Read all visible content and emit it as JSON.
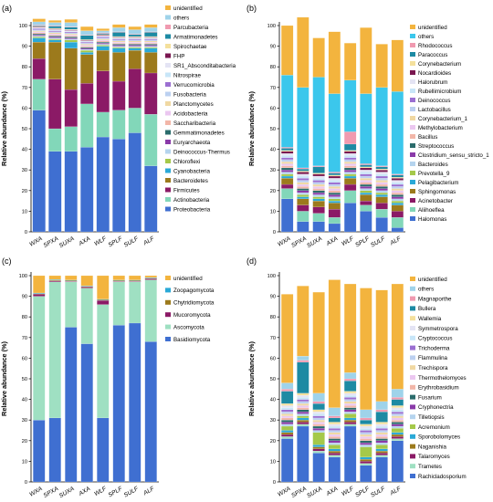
{
  "chart_data": [
    {
      "type": "bar",
      "panel_label": "(a)",
      "ylabel": "Relative abundance (%)",
      "ylim": [
        0,
        100
      ],
      "yticks": [
        "0",
        "10",
        "20",
        "30",
        "40",
        "50",
        "60",
        "70",
        "80",
        "90",
        "100"
      ],
      "categories": [
        "WXA",
        "SPXA",
        "SUXA",
        "AXA",
        "WLF",
        "SPLF",
        "SULF",
        "ALF"
      ],
      "series": [
        {
          "name": "Proteobacteria",
          "color": "#3f6fd1",
          "values": [
            59,
            39,
            39,
            41,
            46,
            45,
            48,
            32
          ]
        },
        {
          "name": "Actinobacteria",
          "color": "#82d7b9",
          "values": [
            15,
            11,
            12,
            21,
            12,
            14,
            12,
            25
          ]
        },
        {
          "name": "Firmicutes",
          "color": "#8b1a66",
          "values": [
            10,
            24,
            18,
            10,
            20,
            14,
            19,
            20
          ]
        },
        {
          "name": "Bacteroidetes",
          "color": "#9c7a1c",
          "values": [
            8,
            18,
            20,
            14,
            10,
            14,
            9,
            10
          ]
        },
        {
          "name": "Cyanobacteria",
          "color": "#2aa9d7",
          "values": [
            2,
            1,
            3,
            1,
            2,
            2,
            1,
            2
          ]
        },
        {
          "name": "Chloroflexi",
          "color": "#a5c94a",
          "values": [
            0.5,
            0.5,
            1,
            1,
            0.5,
            0.5,
            0.5,
            0.5
          ]
        },
        {
          "name": "Deinococcus-Thermus",
          "color": "#b5d4ee",
          "values": [
            0.5,
            0.5,
            0.5,
            0.5,
            0.5,
            0.5,
            0.5,
            0.5
          ]
        },
        {
          "name": "Euryarchaeota",
          "color": "#8a3aa9",
          "values": [
            0.5,
            0.5,
            0.5,
            0.5,
            0.5,
            0.5,
            0.5,
            0.5
          ]
        },
        {
          "name": "Gemmatimonadetes",
          "color": "#2b6c6c",
          "values": [
            0.5,
            0.5,
            0.5,
            0.5,
            0.5,
            0.5,
            0.5,
            0.5
          ]
        },
        {
          "name": "Saccharibacteria",
          "color": "#f2b6a8",
          "values": [
            0.5,
            0.5,
            0.5,
            0.5,
            0.5,
            0.5,
            0.5,
            0.5
          ]
        },
        {
          "name": "Acidobacteria",
          "color": "#ebc7f0",
          "values": [
            0.5,
            0.5,
            0.5,
            0.5,
            0.5,
            0.5,
            0.5,
            0.5
          ]
        },
        {
          "name": "Planctomycetes",
          "color": "#f0d8a2",
          "values": [
            0.5,
            0.5,
            0.5,
            0.5,
            0.5,
            0.5,
            0.5,
            0.5
          ]
        },
        {
          "name": "Fusobacteria",
          "color": "#bcd0f0",
          "values": [
            0.5,
            0.5,
            0.5,
            0.5,
            0.5,
            0.5,
            0.5,
            0.5
          ]
        },
        {
          "name": "Verrucomicrobia",
          "color": "#9b6fd1",
          "values": [
            0.5,
            0.5,
            0.5,
            0.5,
            0.5,
            0.5,
            0.5,
            0.5
          ]
        },
        {
          "name": "Nitrospirae",
          "color": "#c8e6f8",
          "values": [
            0.3,
            0.3,
            0.3,
            0.3,
            0.3,
            0.3,
            0.3,
            0.3
          ]
        },
        {
          "name": "SR1_Absconditabacteria",
          "color": "#e4e4f4",
          "values": [
            0.3,
            0.3,
            0.3,
            0.3,
            0.3,
            0.3,
            0.3,
            0.3
          ]
        },
        {
          "name": "FHP",
          "color": "#7a1750",
          "values": [
            0.3,
            0.3,
            0.3,
            0.3,
            0.3,
            0.3,
            0.3,
            0.3
          ]
        },
        {
          "name": "Spirochaetae",
          "color": "#f4e09c",
          "values": [
            0.3,
            0.3,
            0.3,
            0.3,
            0.3,
            0.3,
            0.3,
            0.3
          ]
        },
        {
          "name": "Armatimonadetes",
          "color": "#1d8aa3",
          "values": [
            0.3,
            1,
            1,
            2,
            0.5,
            2,
            1,
            2
          ]
        },
        {
          "name": "Parcubacteria",
          "color": "#f09ab0",
          "values": [
            0.3,
            0.3,
            0.3,
            0.3,
            0.3,
            0.3,
            0.3,
            0.3
          ]
        },
        {
          "name": "others",
          "color": "#9fd3ea",
          "values": [
            1.5,
            1.5,
            2,
            2,
            1,
            2,
            2,
            2
          ]
        },
        {
          "name": "unidentified",
          "color": "#f3b43e",
          "values": [
            1.5,
            1,
            1.5,
            2,
            1,
            1.5,
            1.5,
            1.5
          ]
        }
      ]
    },
    {
      "type": "bar",
      "panel_label": "(b)",
      "ylabel": "Relative abundance (%)",
      "ylim": [
        0,
        100
      ],
      "yticks": [
        "0",
        "10",
        "20",
        "30",
        "40",
        "50",
        "60",
        "70",
        "80",
        "90",
        "100"
      ],
      "categories": [
        "WXA",
        "SPXA",
        "SUXA",
        "AXA",
        "WLF",
        "SPLF",
        "SULF",
        "ALF"
      ],
      "series": [
        {
          "name": "Halomonas",
          "color": "#3f6fd1",
          "values": [
            16,
            5,
            5,
            4,
            14,
            10,
            7,
            2
          ]
        },
        {
          "name": "Aliihoeflea",
          "color": "#82d7b9",
          "values": [
            5,
            5,
            4,
            3,
            6,
            3,
            4,
            5
          ]
        },
        {
          "name": "Acinetobacter",
          "color": "#8b1a66",
          "values": [
            2,
            3,
            3,
            4,
            3,
            2,
            3,
            3
          ]
        },
        {
          "name": "Sphingomonas",
          "color": "#9c7a1c",
          "values": [
            3,
            3,
            3,
            3,
            3,
            3,
            3,
            3
          ]
        },
        {
          "name": "Pelagibacterium",
          "color": "#2aa9d7",
          "values": [
            1,
            1,
            1,
            1,
            1,
            1,
            1,
            1
          ]
        },
        {
          "name": "Prevotella_9",
          "color": "#a5c94a",
          "values": [
            1,
            1,
            1,
            1,
            1,
            1,
            1,
            1
          ]
        },
        {
          "name": "Bacteroides",
          "color": "#b5d4ee",
          "values": [
            1,
            1,
            1,
            1,
            1,
            1,
            1,
            1
          ]
        },
        {
          "name": "Clostridium_sensu_stricto_1",
          "color": "#8a3aa9",
          "values": [
            1,
            1,
            1,
            1,
            1,
            1,
            1,
            1
          ]
        },
        {
          "name": "Streptococcus",
          "color": "#2b6c6c",
          "values": [
            1,
            1,
            1,
            1,
            1,
            1,
            1,
            1
          ]
        },
        {
          "name": "Bacillus",
          "color": "#f2b6a8",
          "values": [
            1,
            1,
            1,
            1,
            1,
            1,
            1,
            1
          ]
        },
        {
          "name": "Methylobacterium",
          "color": "#ebc7f0",
          "values": [
            1,
            1,
            1,
            1,
            1,
            1,
            1,
            1
          ]
        },
        {
          "name": "Corynebacterium_1",
          "color": "#f0d8a2",
          "values": [
            1,
            1,
            1,
            1,
            1,
            1,
            1,
            1
          ]
        },
        {
          "name": "Lactobacillus",
          "color": "#bcd0f0",
          "values": [
            1,
            1,
            1,
            1,
            1,
            1,
            1,
            1
          ]
        },
        {
          "name": "Deinococcus",
          "color": "#9b6fd1",
          "values": [
            1,
            1,
            1,
            1,
            1,
            1,
            1,
            1
          ]
        },
        {
          "name": "Rubellimicrobium",
          "color": "#c8e6f8",
          "values": [
            1,
            1,
            1,
            1,
            1,
            1,
            1,
            1
          ]
        },
        {
          "name": "Halorubrum",
          "color": "#e4e4f4",
          "values": [
            1,
            1,
            1,
            1,
            1,
            1,
            1,
            1
          ]
        },
        {
          "name": "Nocardioides",
          "color": "#7a1750",
          "values": [
            1,
            1,
            1,
            1,
            1,
            1,
            1,
            1
          ]
        },
        {
          "name": "Corynebacterium",
          "color": "#f4e09c",
          "values": [
            0.5,
            0.5,
            0.5,
            0.5,
            0.5,
            0.5,
            0.5,
            0.5
          ]
        },
        {
          "name": "Paracoccus",
          "color": "#1d8aa3",
          "values": [
            1,
            1,
            3,
            1,
            3,
            1,
            1,
            1
          ]
        },
        {
          "name": "Rhodococcus",
          "color": "#f09ab0",
          "values": [
            0.5,
            0.5,
            0.5,
            0.5,
            6,
            0.5,
            0.5,
            0.5
          ]
        },
        {
          "name": "others",
          "color": "#3bc7ec",
          "values": [
            35,
            39,
            43,
            38,
            25,
            34,
            38,
            40
          ]
        },
        {
          "name": "unidentified",
          "color": "#f3b43e",
          "values": [
            24,
            34,
            19,
            30,
            18,
            32,
            21,
            25
          ]
        }
      ]
    },
    {
      "type": "bar",
      "panel_label": "(c)",
      "ylabel": "Relative abundance (%)",
      "ylim": [
        0,
        100
      ],
      "yticks": [
        "0",
        "10",
        "20",
        "30",
        "40",
        "50",
        "60",
        "70",
        "80",
        "90",
        "100"
      ],
      "categories": [
        "WXA",
        "SPXA",
        "SUXA",
        "AXA",
        "WLF",
        "SPLF",
        "SULF",
        "ALF"
      ],
      "series": [
        {
          "name": "Basidiomycota",
          "color": "#3f6fd1",
          "values": [
            30,
            31,
            75,
            67,
            31,
            76,
            77,
            68
          ]
        },
        {
          "name": "Ascomycota",
          "color": "#9fe0c2",
          "values": [
            60,
            66,
            22,
            27,
            55,
            21,
            20,
            30
          ]
        },
        {
          "name": "Mucoromycota",
          "color": "#8b1a66",
          "values": [
            1,
            0.5,
            0.3,
            0.5,
            2,
            0.3,
            0.3,
            0.5
          ]
        },
        {
          "name": "Chytridiomycota",
          "color": "#9c7a1c",
          "values": [
            0.3,
            0.3,
            0.3,
            0.3,
            0.3,
            0.3,
            0.3,
            0.3
          ]
        },
        {
          "name": "Zoopagomycota",
          "color": "#2aa9d7",
          "values": [
            0.3,
            0.3,
            0.3,
            0.3,
            0.3,
            0.3,
            0.3,
            0.3
          ]
        },
        {
          "name": "unidentified",
          "color": "#f3b43e",
          "values": [
            8.4,
            1.9,
            2.1,
            4.9,
            11.4,
            2.1,
            2.1,
            0.9
          ]
        }
      ]
    },
    {
      "type": "bar",
      "panel_label": "(d)",
      "ylabel": "Relative abundance (%)",
      "ylim": [
        0,
        100
      ],
      "yticks": [
        "0",
        "10",
        "20",
        "30",
        "40",
        "50",
        "60",
        "70",
        "80",
        "90",
        "100"
      ],
      "categories": [
        "WXA",
        "SPXA",
        "SUXA",
        "AXA",
        "WLF",
        "SPLF",
        "SULF",
        "ALF"
      ],
      "series": [
        {
          "name": "Rachicladosporium",
          "color": "#3f6fd1",
          "values": [
            21,
            27,
            14,
            12,
            27,
            8,
            12,
            20
          ]
        },
        {
          "name": "Trametes",
          "color": "#9fe0c2",
          "values": [
            1,
            1,
            1,
            1,
            1,
            1,
            1,
            1
          ]
        },
        {
          "name": "Talaromyces",
          "color": "#8b1a66",
          "values": [
            1,
            1,
            1,
            1,
            1,
            1,
            1,
            1
          ]
        },
        {
          "name": "Naganishia",
          "color": "#9c7a1c",
          "values": [
            1,
            1,
            1,
            1,
            1,
            1,
            1,
            1
          ]
        },
        {
          "name": "Sporobolomyces",
          "color": "#2aa9d7",
          "values": [
            1,
            1,
            1,
            1,
            1,
            1,
            1,
            1
          ]
        },
        {
          "name": "Acremonium",
          "color": "#a5c94a",
          "values": [
            2,
            1,
            6,
            2,
            2,
            5,
            2,
            2
          ]
        },
        {
          "name": "Tilletiopsis",
          "color": "#b5d4ee",
          "values": [
            1,
            1,
            1,
            1,
            1,
            1,
            1,
            1
          ]
        },
        {
          "name": "Cryphonectria",
          "color": "#8a3aa9",
          "values": [
            1,
            1,
            1,
            1,
            1,
            1,
            1,
            1
          ]
        },
        {
          "name": "Fusarium",
          "color": "#2b6c6c",
          "values": [
            1,
            1,
            1,
            1,
            1,
            1,
            1,
            1
          ]
        },
        {
          "name": "Erythrobasidium",
          "color": "#f2b6a8",
          "values": [
            1,
            1,
            1,
            1,
            1,
            1,
            1,
            1
          ]
        },
        {
          "name": "Thermothelomyces",
          "color": "#ebc7f0",
          "values": [
            1,
            1,
            1,
            1,
            1,
            1,
            1,
            1
          ]
        },
        {
          "name": "Trechispora",
          "color": "#f0d8a2",
          "values": [
            1,
            1,
            1,
            1,
            1,
            1,
            1,
            1
          ]
        },
        {
          "name": "Flammulina",
          "color": "#bcd0f0",
          "values": [
            1,
            1,
            1,
            1,
            1,
            1,
            1,
            1
          ]
        },
        {
          "name": "Trichoderma",
          "color": "#9b6fd1",
          "values": [
            1,
            1,
            1,
            1,
            1,
            1,
            1,
            1
          ]
        },
        {
          "name": "Cryptococcus",
          "color": "#c8e6f8",
          "values": [
            1,
            1,
            1,
            1,
            1,
            1,
            1,
            1
          ]
        },
        {
          "name": "Symmetrospora",
          "color": "#e4e4f4",
          "values": [
            1,
            1,
            1,
            1,
            1,
            1,
            1,
            1
          ]
        },
        {
          "name": "Wallemia",
          "color": "#f4e09c",
          "values": [
            1,
            1,
            1,
            1,
            1,
            1,
            1,
            1
          ]
        },
        {
          "name": "Bullera",
          "color": "#1d8aa3",
          "values": [
            6,
            15,
            3,
            2,
            5,
            2,
            5,
            3
          ]
        },
        {
          "name": "Magnaporthe",
          "color": "#f09ab0",
          "values": [
            1,
            1,
            1,
            1,
            1,
            1,
            1,
            1
          ]
        },
        {
          "name": "others",
          "color": "#9fd3ea",
          "values": [
            3,
            2,
            4,
            4,
            3,
            4,
            4,
            4
          ]
        },
        {
          "name": "unidentified",
          "color": "#f3b43e",
          "values": [
            43,
            34,
            49,
            62,
            43,
            59,
            54,
            51
          ]
        }
      ]
    }
  ]
}
